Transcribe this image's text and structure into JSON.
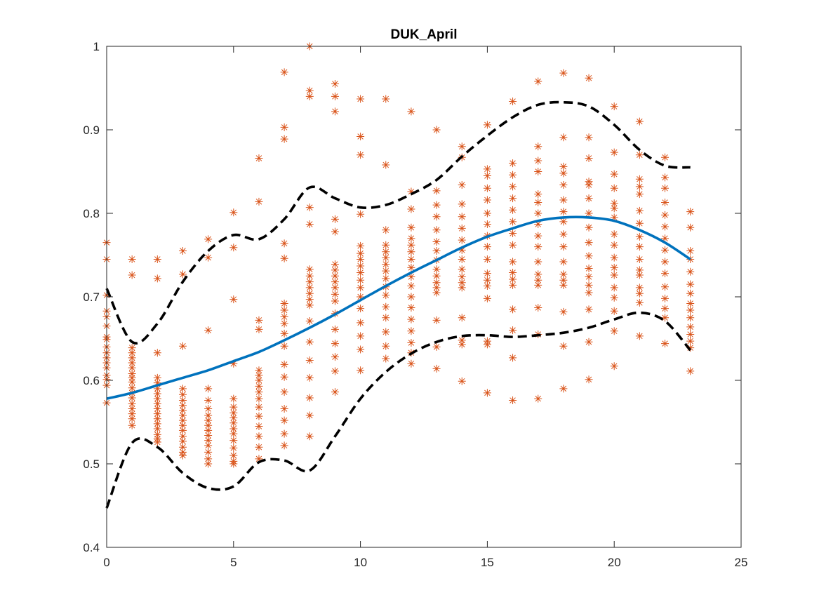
{
  "chart_data": {
    "type": "scatter",
    "title": "DUK_April",
    "xlabel": "",
    "ylabel": "",
    "xlim": [
      0,
      25
    ],
    "ylim": [
      0.4,
      1
    ],
    "xticks": [
      0,
      5,
      10,
      15,
      20,
      25
    ],
    "yticks": [
      0.4,
      0.5,
      0.6,
      0.7,
      0.8,
      0.9,
      1
    ],
    "ytick_labels": [
      "0.4",
      "0.5",
      "0.6",
      "0.7",
      "0.8",
      "0.9",
      "1"
    ],
    "grid": false,
    "box": true,
    "colors": {
      "scatter": "#d95319",
      "mean_line": "#0072bd",
      "bound_line": "#000000",
      "axes": "#262626"
    },
    "scatter": [
      {
        "x": 0,
        "y": [
          0.765,
          0.745,
          0.702,
          0.683,
          0.676,
          0.665,
          0.652,
          0.649,
          0.64,
          0.633,
          0.627,
          0.621,
          0.615,
          0.606,
          0.601,
          0.594,
          0.573
        ]
      },
      {
        "x": 1,
        "y": [
          0.745,
          0.726,
          0.639,
          0.633,
          0.627,
          0.621,
          0.615,
          0.608,
          0.603,
          0.598,
          0.591,
          0.585,
          0.579,
          0.572,
          0.566,
          0.56,
          0.554,
          0.546
        ]
      },
      {
        "x": 2,
        "y": [
          0.745,
          0.722,
          0.633,
          0.603,
          0.597,
          0.59,
          0.584,
          0.578,
          0.572,
          0.566,
          0.56,
          0.554,
          0.548,
          0.542,
          0.535,
          0.53,
          0.526
        ]
      },
      {
        "x": 3,
        "y": [
          0.755,
          0.727,
          0.641,
          0.59,
          0.583,
          0.576,
          0.57,
          0.564,
          0.558,
          0.552,
          0.546,
          0.54,
          0.533,
          0.527,
          0.52,
          0.514,
          0.51
        ]
      },
      {
        "x": 4,
        "y": [
          0.769,
          0.747,
          0.66,
          0.59,
          0.576,
          0.566,
          0.558,
          0.552,
          0.546,
          0.54,
          0.534,
          0.528,
          0.522,
          0.514,
          0.506,
          0.5
        ]
      },
      {
        "x": 5,
        "y": [
          0.801,
          0.759,
          0.697,
          0.62,
          0.578,
          0.568,
          0.561,
          0.555,
          0.549,
          0.542,
          0.536,
          0.528,
          0.519,
          0.51,
          0.503,
          0.5
        ]
      },
      {
        "x": 6,
        "y": [
          0.866,
          0.814,
          0.672,
          0.661,
          0.612,
          0.606,
          0.6,
          0.593,
          0.586,
          0.578,
          0.568,
          0.557,
          0.545,
          0.533,
          0.52,
          0.506
        ]
      },
      {
        "x": 7,
        "y": [
          0.969,
          0.903,
          0.889,
          0.764,
          0.746,
          0.692,
          0.684,
          0.676,
          0.668,
          0.656,
          0.641,
          0.619,
          0.604,
          0.586,
          0.566,
          0.552,
          0.536,
          0.522
        ]
      },
      {
        "x": 8,
        "y": [
          1.0,
          0.947,
          0.94,
          0.807,
          0.787,
          0.733,
          0.725,
          0.718,
          0.711,
          0.704,
          0.697,
          0.69,
          0.671,
          0.646,
          0.624,
          0.603,
          0.579,
          0.558,
          0.533
        ]
      },
      {
        "x": 9,
        "y": [
          0.955,
          0.94,
          0.922,
          0.793,
          0.778,
          0.739,
          0.732,
          0.725,
          0.718,
          0.711,
          0.703,
          0.695,
          0.68,
          0.661,
          0.644,
          0.628,
          0.611,
          0.586
        ]
      },
      {
        "x": 10,
        "y": [
          0.937,
          0.892,
          0.87,
          0.799,
          0.761,
          0.752,
          0.745,
          0.737,
          0.729,
          0.72,
          0.711,
          0.7,
          0.686,
          0.669,
          0.653,
          0.637,
          0.612
        ]
      },
      {
        "x": 11,
        "y": [
          0.937,
          0.858,
          0.78,
          0.762,
          0.754,
          0.747,
          0.739,
          0.731,
          0.722,
          0.712,
          0.702,
          0.688,
          0.675,
          0.658,
          0.641,
          0.626
        ]
      },
      {
        "x": 12,
        "y": [
          0.922,
          0.826,
          0.805,
          0.783,
          0.77,
          0.762,
          0.754,
          0.745,
          0.735,
          0.724,
          0.713,
          0.7,
          0.687,
          0.673,
          0.659,
          0.645,
          0.633,
          0.62
        ]
      },
      {
        "x": 13,
        "y": [
          0.9,
          0.827,
          0.81,
          0.796,
          0.78,
          0.766,
          0.755,
          0.744,
          0.733,
          0.725,
          0.717,
          0.711,
          0.705,
          0.672,
          0.64,
          0.614
        ]
      },
      {
        "x": 14,
        "y": [
          0.88,
          0.867,
          0.834,
          0.811,
          0.796,
          0.782,
          0.768,
          0.756,
          0.745,
          0.733,
          0.724,
          0.717,
          0.711,
          0.675,
          0.648,
          0.643,
          0.599
        ]
      },
      {
        "x": 15,
        "y": [
          0.906,
          0.853,
          0.845,
          0.83,
          0.816,
          0.8,
          0.787,
          0.773,
          0.76,
          0.745,
          0.728,
          0.72,
          0.713,
          0.698,
          0.647,
          0.643,
          0.585
        ]
      },
      {
        "x": 16,
        "y": [
          0.934,
          0.86,
          0.846,
          0.832,
          0.818,
          0.804,
          0.79,
          0.776,
          0.762,
          0.742,
          0.729,
          0.721,
          0.714,
          0.685,
          0.66,
          0.627,
          0.576
        ]
      },
      {
        "x": 17,
        "y": [
          0.958,
          0.88,
          0.863,
          0.85,
          0.823,
          0.813,
          0.8,
          0.787,
          0.773,
          0.76,
          0.742,
          0.727,
          0.72,
          0.714,
          0.687,
          0.655,
          0.578
        ]
      },
      {
        "x": 18,
        "y": [
          0.968,
          0.891,
          0.856,
          0.848,
          0.834,
          0.816,
          0.802,
          0.79,
          0.775,
          0.76,
          0.742,
          0.727,
          0.72,
          0.714,
          0.682,
          0.641,
          0.59
        ]
      },
      {
        "x": 19,
        "y": [
          0.962,
          0.891,
          0.866,
          0.838,
          0.834,
          0.818,
          0.8,
          0.783,
          0.765,
          0.749,
          0.734,
          0.724,
          0.714,
          0.705,
          0.685,
          0.646,
          0.601
        ]
      },
      {
        "x": 20,
        "y": [
          0.928,
          0.873,
          0.847,
          0.83,
          0.812,
          0.806,
          0.795,
          0.775,
          0.762,
          0.747,
          0.735,
          0.726,
          0.711,
          0.699,
          0.683,
          0.659,
          0.617
        ]
      },
      {
        "x": 21,
        "y": [
          0.91,
          0.87,
          0.841,
          0.832,
          0.823,
          0.803,
          0.788,
          0.772,
          0.76,
          0.745,
          0.732,
          0.726,
          0.711,
          0.704,
          0.693,
          0.653
        ]
      },
      {
        "x": 22,
        "y": [
          0.867,
          0.843,
          0.83,
          0.813,
          0.798,
          0.784,
          0.77,
          0.756,
          0.742,
          0.728,
          0.712,
          0.698,
          0.686,
          0.675,
          0.644
        ]
      },
      {
        "x": 23,
        "y": [
          0.802,
          0.783,
          0.755,
          0.745,
          0.73,
          0.715,
          0.704,
          0.692,
          0.684,
          0.675,
          0.664,
          0.655,
          0.647,
          0.639,
          0.611
        ]
      }
    ],
    "lines": [
      {
        "style": "solid",
        "color": "#0072bd",
        "x": [
          0,
          1,
          2,
          3,
          4,
          5,
          6,
          7,
          8,
          9,
          10,
          11,
          12,
          13,
          14,
          15,
          16,
          17,
          18,
          19,
          20,
          21,
          22,
          23
        ],
        "y": [
          0.578,
          0.585,
          0.594,
          0.603,
          0.612,
          0.623,
          0.634,
          0.648,
          0.663,
          0.679,
          0.696,
          0.713,
          0.729,
          0.744,
          0.759,
          0.772,
          0.782,
          0.791,
          0.795,
          0.795,
          0.791,
          0.78,
          0.765,
          0.745
        ]
      },
      {
        "style": "dashed",
        "color": "#000000",
        "x": [
          0,
          1,
          2,
          3,
          4,
          5,
          6,
          7,
          8,
          9,
          10,
          11,
          12,
          13,
          14,
          15,
          16,
          17,
          18,
          19,
          20,
          21,
          22,
          23
        ],
        "y": [
          0.71,
          0.646,
          0.668,
          0.718,
          0.755,
          0.774,
          0.769,
          0.793,
          0.831,
          0.818,
          0.807,
          0.81,
          0.823,
          0.84,
          0.868,
          0.893,
          0.915,
          0.93,
          0.933,
          0.928,
          0.906,
          0.876,
          0.857,
          0.855
        ]
      },
      {
        "style": "dashed",
        "color": "#000000",
        "x": [
          0,
          1,
          2,
          3,
          4,
          5,
          6,
          7,
          8,
          9,
          10,
          11,
          12,
          13,
          14,
          15,
          16,
          17,
          18,
          19,
          20,
          21,
          22,
          23
        ],
        "y": [
          0.447,
          0.525,
          0.52,
          0.489,
          0.471,
          0.473,
          0.502,
          0.504,
          0.492,
          0.533,
          0.578,
          0.61,
          0.632,
          0.646,
          0.653,
          0.654,
          0.652,
          0.654,
          0.657,
          0.663,
          0.673,
          0.681,
          0.671,
          0.636
        ]
      }
    ]
  }
}
